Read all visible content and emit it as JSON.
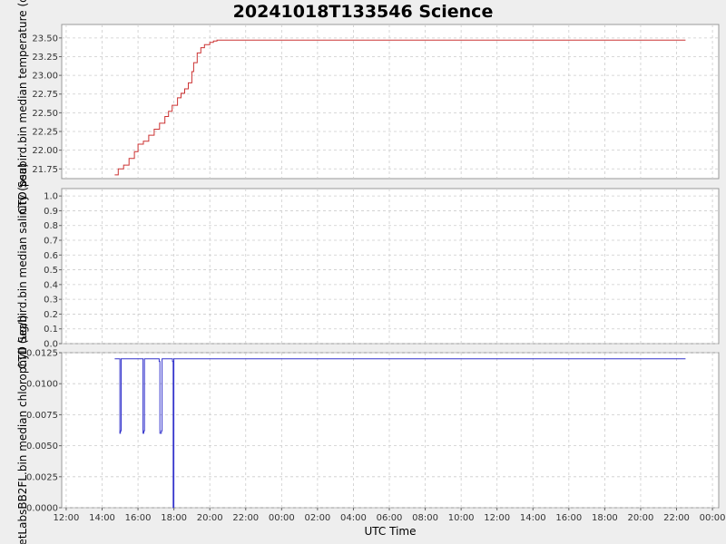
{
  "title": "20241018T133546 Science",
  "xlabel": "UTC Time",
  "x_ticks": [
    "12:00",
    "14:00",
    "16:00",
    "18:00",
    "20:00",
    "22:00",
    "00:00",
    "02:00",
    "04:00",
    "06:00",
    "08:00",
    "10:00",
    "12:00",
    "14:00",
    "16:00",
    "18:00",
    "20:00",
    "22:00",
    "00:00"
  ],
  "colors": {
    "temperature": "#cc3333",
    "chlorophyll": "#3333cc",
    "background": "#eeeeee",
    "plot_bg": "#ffffff",
    "grid": "#cccccc"
  },
  "chart_data": [
    {
      "type": "line",
      "ylabel": "CTD Seabird.bin median temperature (de",
      "ylim": [
        21.62,
        23.68
      ],
      "y_ticks": [
        "21.75",
        "22.00",
        "22.25",
        "22.50",
        "22.75",
        "23.00",
        "23.25",
        "23.50"
      ],
      "grid": true,
      "series": [
        {
          "x": [
            14.7,
            14.9,
            15.2,
            15.5,
            15.8,
            16.0,
            16.3,
            16.6,
            16.9,
            17.2,
            17.5,
            17.7,
            17.9,
            18.2,
            18.4,
            18.6,
            18.8,
            19.0,
            19.1,
            19.3,
            19.5,
            19.7,
            20.0,
            20.2,
            20.4,
            22.0,
            24.0,
            30.0,
            36.0,
            42.0,
            46.5
          ],
          "y": [
            21.67,
            21.75,
            21.8,
            21.89,
            21.98,
            22.08,
            22.12,
            22.2,
            22.28,
            22.36,
            22.45,
            22.52,
            22.6,
            22.7,
            22.76,
            22.82,
            22.9,
            23.05,
            23.17,
            23.3,
            23.37,
            23.41,
            23.44,
            23.46,
            23.47,
            23.47,
            23.47,
            23.47,
            23.47,
            23.47,
            23.47
          ]
        }
      ]
    },
    {
      "type": "line",
      "ylabel": "CTD Seabird.bin median salinity (psu)",
      "ylim": [
        0,
        1.05
      ],
      "y_ticks": [
        "0.0",
        "0.1",
        "0.2",
        "0.3",
        "0.4",
        "0.5",
        "0.6",
        "0.7",
        "0.8",
        "0.9",
        "1.0"
      ],
      "grid": true,
      "series": []
    },
    {
      "type": "line",
      "ylabel": "etLabsBB2FL.bin median chlorophyll (ug/l)",
      "ylim": [
        0,
        0.0125
      ],
      "y_ticks": [
        "0.0000",
        "0.0025",
        "0.0050",
        "0.0075",
        "0.0100",
        "0.0125"
      ],
      "grid": true,
      "series": [
        {
          "x": [
            14.7,
            14.95,
            14.99,
            15.02,
            15.06,
            15.09,
            15.12,
            16.2,
            16.28,
            16.32,
            16.36,
            16.4,
            17.1,
            17.18,
            17.22,
            17.3,
            17.34,
            17.4,
            17.85,
            17.92,
            17.96,
            18.0,
            18.05,
            22.0,
            30.0,
            40.0,
            46.5
          ],
          "y": [
            0.012,
            0.012,
            0.006,
            0.0062,
            0.012,
            0.012,
            0.012,
            0.012,
            0.006,
            0.0062,
            0.012,
            0.012,
            0.012,
            0.0118,
            0.006,
            0.0062,
            0.012,
            0.012,
            0.012,
            0.0118,
            0.0,
            0.012,
            0.012,
            0.012,
            0.012,
            0.012,
            0.012
          ]
        }
      ]
    }
  ]
}
